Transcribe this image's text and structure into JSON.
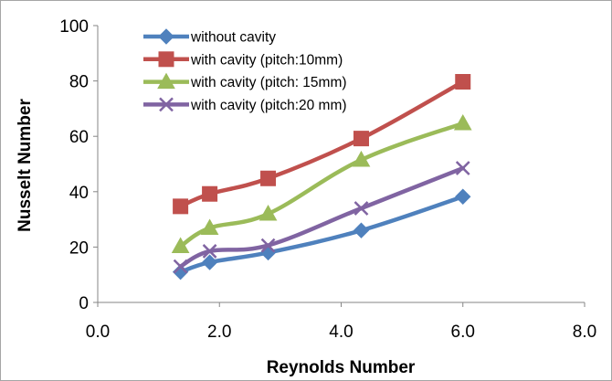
{
  "chart_data": {
    "type": "line",
    "title": "",
    "xlabel": "Reynolds Number",
    "ylabel": "Nusselt Number",
    "xlim": [
      0,
      8
    ],
    "ylim": [
      0,
      100
    ],
    "xticks": [
      0,
      2,
      4,
      6,
      8
    ],
    "yticks": [
      0,
      20,
      40,
      60,
      80,
      100
    ],
    "xtick_labels": [
      "0.0",
      "2.0",
      "4.0",
      "6.0",
      "8.0"
    ],
    "ytick_labels": [
      "0",
      "20",
      "40",
      "60",
      "80",
      "100"
    ],
    "grid": false,
    "legend_position": "top-left",
    "series": [
      {
        "name": "without cavity",
        "color": "#4f81bd",
        "marker": "diamond",
        "x": [
          1.36,
          1.84,
          2.8,
          4.33,
          6.0
        ],
        "y": [
          11.0,
          14.5,
          18.0,
          26.0,
          38.2
        ]
      },
      {
        "name": "with cavity (pitch:10mm)",
        "color": "#c0504d",
        "marker": "square",
        "x": [
          1.36,
          1.84,
          2.8,
          4.33,
          6.0
        ],
        "y": [
          34.7,
          39.2,
          44.8,
          59.2,
          79.7
        ]
      },
      {
        "name": "with cavity (pitch: 15mm)",
        "color": "#9bbb59",
        "marker": "triangle",
        "x": [
          1.36,
          1.84,
          2.8,
          4.33,
          6.0
        ],
        "y": [
          20.3,
          26.9,
          32.0,
          51.5,
          64.7
        ]
      },
      {
        "name": "with cavity (pitch:20 mm)",
        "color": "#8064a2",
        "marker": "x",
        "x": [
          1.36,
          1.84,
          2.8,
          4.33,
          6.0
        ],
        "y": [
          13.0,
          18.5,
          20.6,
          34.0,
          48.5
        ]
      }
    ]
  }
}
